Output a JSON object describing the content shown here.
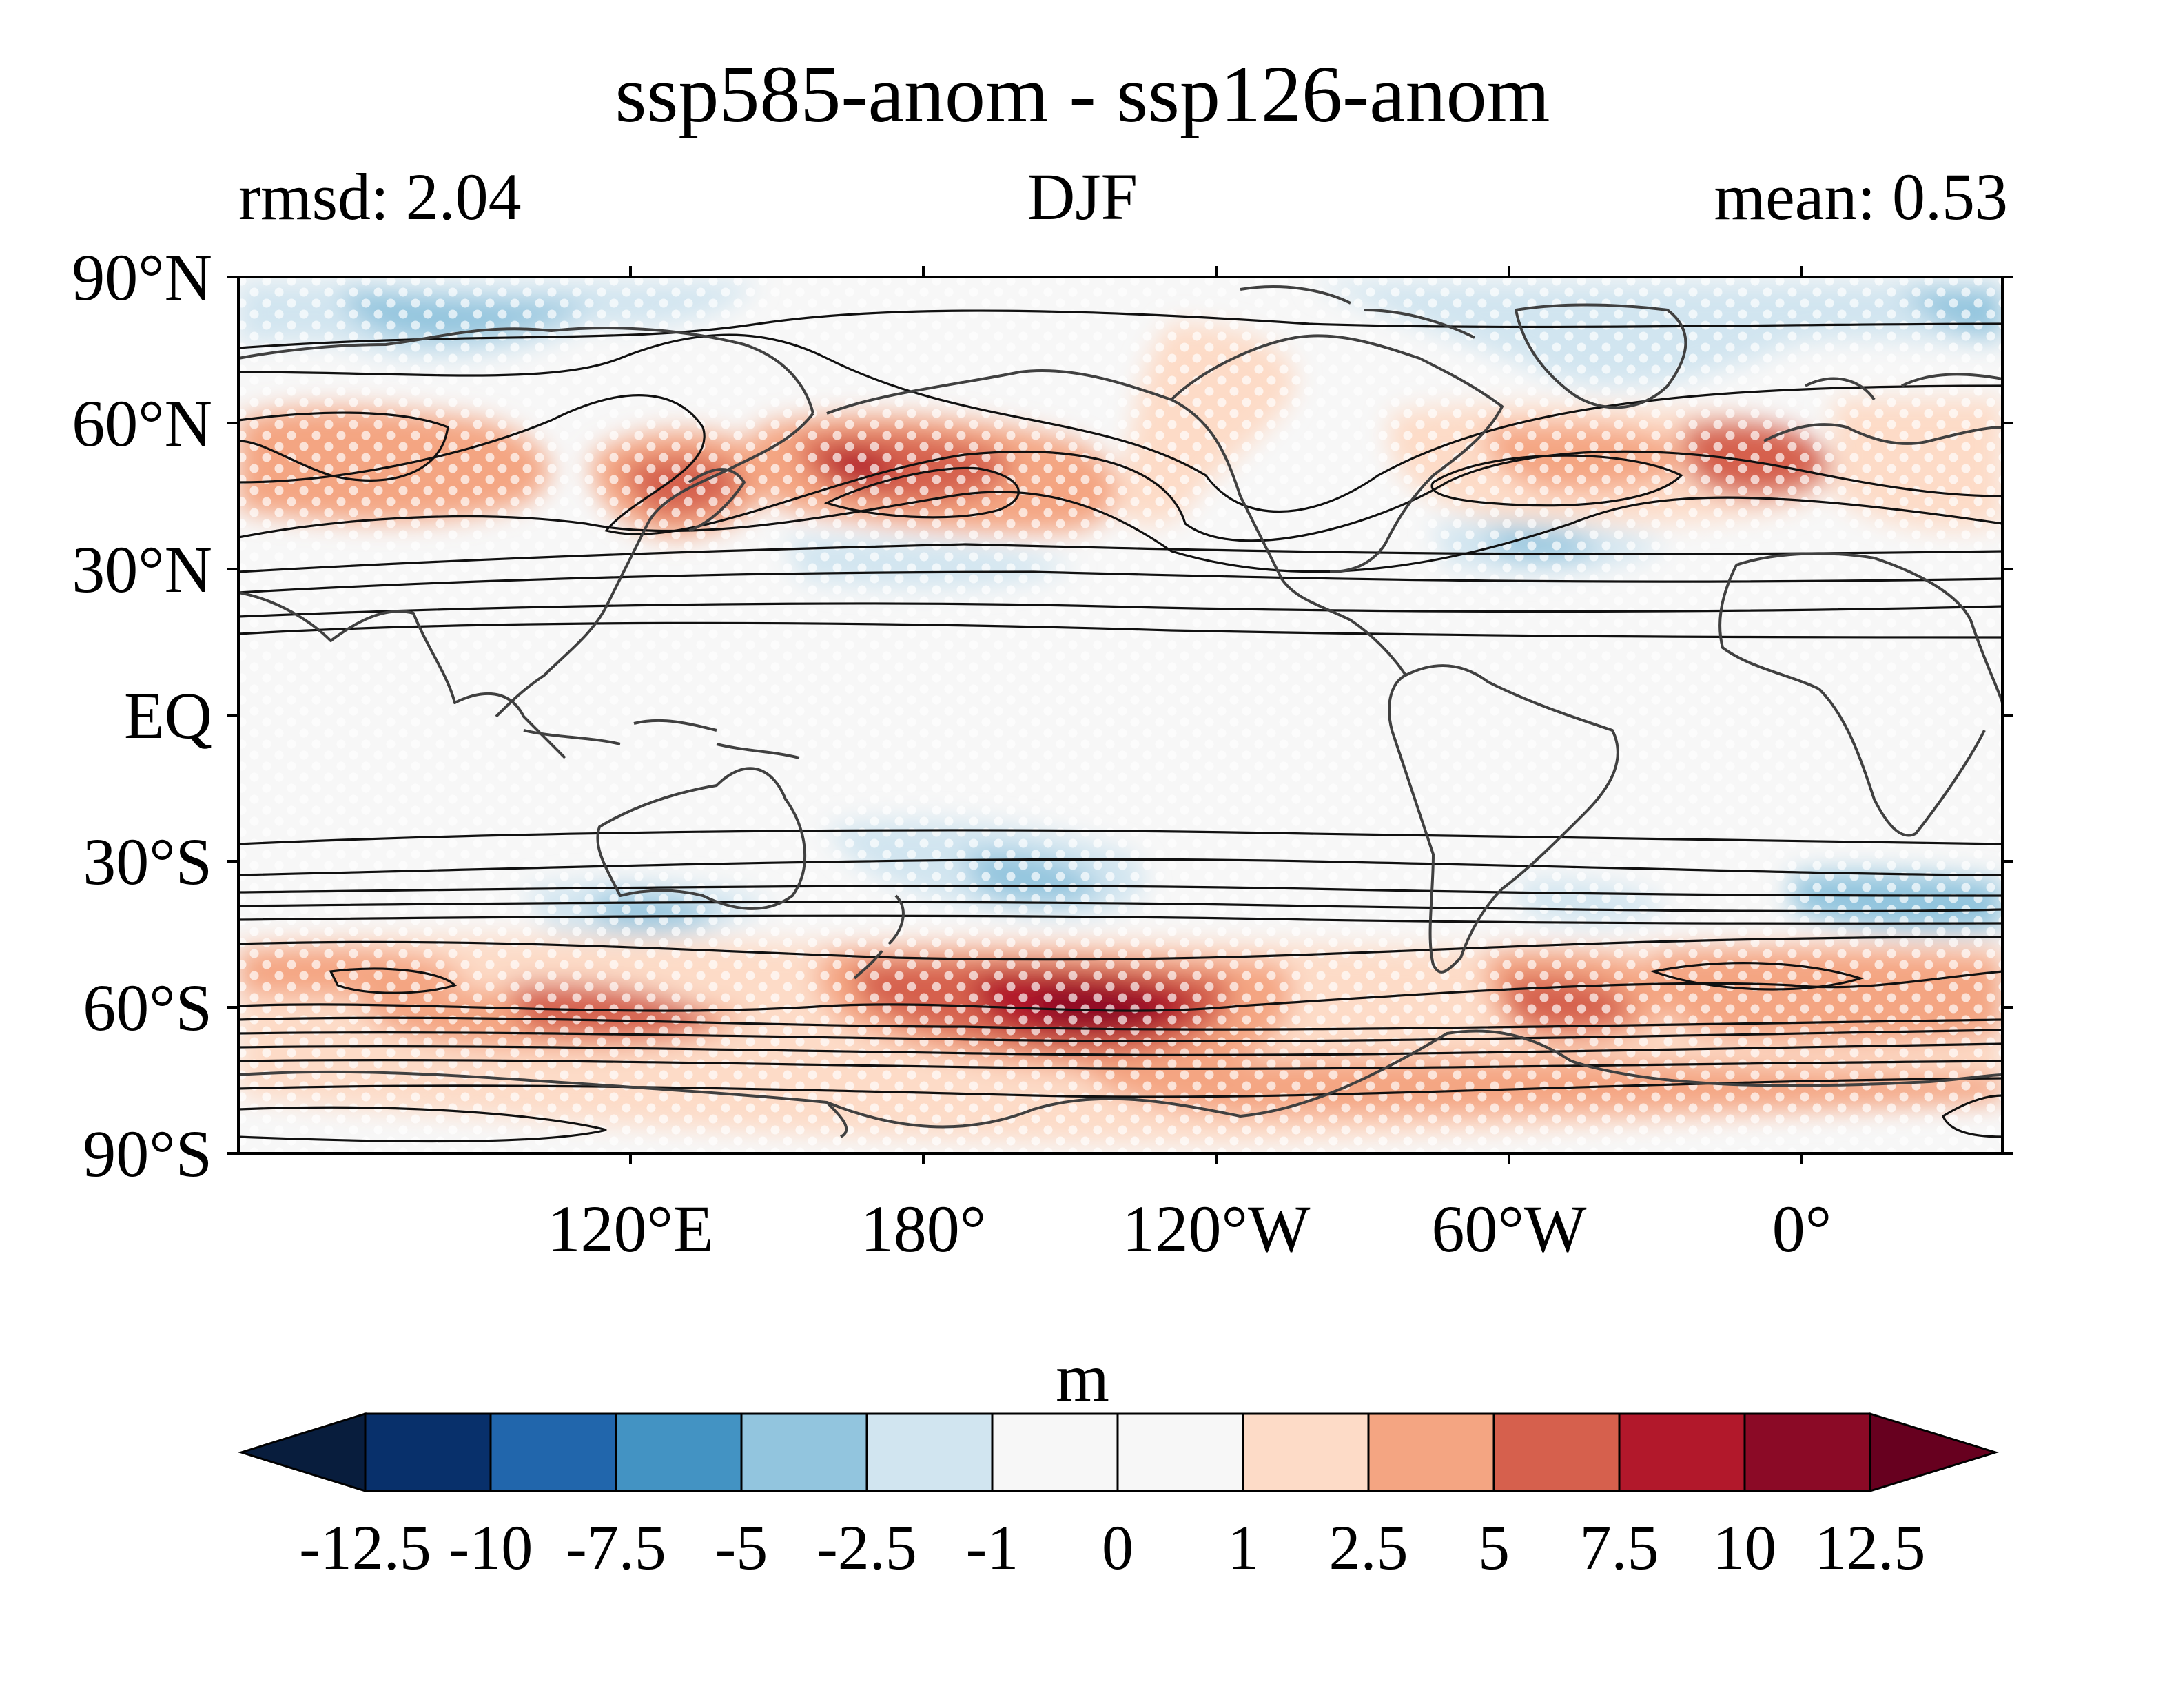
{
  "title": "ssp585-anom - ssp126-anom",
  "subtitle_left": "rmsd: 2.04",
  "subtitle_center": "DJF",
  "subtitle_right": "mean: 0.53",
  "map": {
    "projection": "equirectangular",
    "central_longitude": "60°E",
    "lat_ticks": [
      "90°N",
      "60°N",
      "30°N",
      "EQ",
      "30°S",
      "60°S",
      "90°S"
    ],
    "lon_ticks": [
      "120°E",
      "180°",
      "120°W",
      "60°W",
      "0°"
    ],
    "features": [
      "filled anomaly contours",
      "black climatology contour lines",
      "white significance stippling",
      "dark gray coastlines"
    ]
  },
  "colorbar": {
    "units": "m",
    "extend": "both",
    "levels": [
      "-12.5",
      "-10",
      "-7.5",
      "-5",
      "-2.5",
      "-1",
      "0",
      "1",
      "2.5",
      "5",
      "7.5",
      "10",
      "12.5"
    ],
    "colors": [
      "#081d3d",
      "#08306b",
      "#2166ac",
      "#4393c3",
      "#92c5de",
      "#d1e5f0",
      "#f7f7f7",
      "#f7f7f7",
      "#fddbc7",
      "#f4a582",
      "#d6604d",
      "#b2182b",
      "#8b0a26",
      "#67001f"
    ]
  }
}
